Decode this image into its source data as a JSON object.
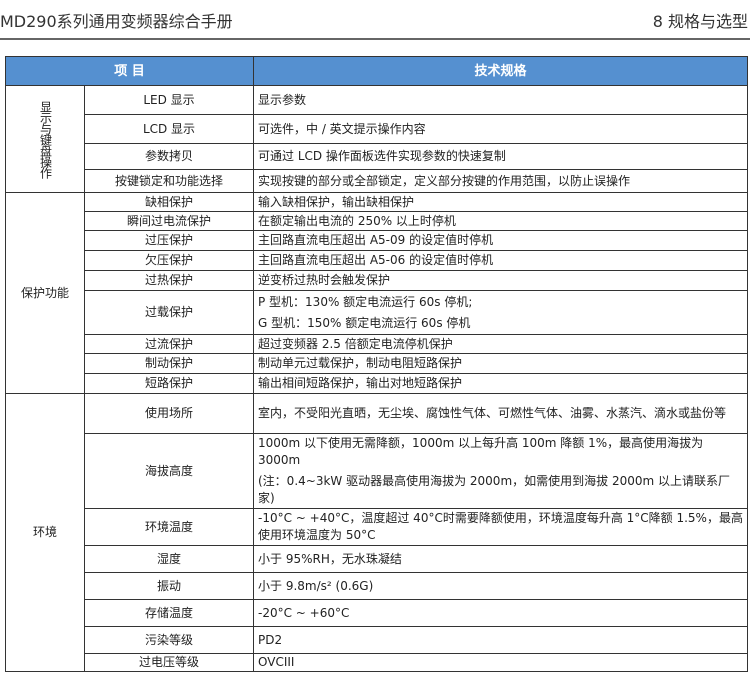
{
  "header": {
    "title": "MD290系列通用变频器综合手册",
    "chapter": "8  规格与选型"
  },
  "table": {
    "headers": [
      "项 目",
      "技术规格"
    ],
    "groups": [
      {
        "name": "显示与键盘操作",
        "rows": [
          {
            "item": "LED 显示",
            "spec": [
              "显示参数"
            ]
          },
          {
            "item": "LCD 显示",
            "spec": [
              "可选件，中 / 英文提示操作内容"
            ]
          },
          {
            "item": "参数拷贝",
            "spec": [
              "可通过 LCD 操作面板选件实现参数的快速复制"
            ]
          },
          {
            "item": "按键锁定和功能选择",
            "spec": [
              "实现按键的部分或全部锁定，定义部分按键的作用范围，以防止误操作"
            ]
          }
        ]
      },
      {
        "name": "保护功能",
        "rows": [
          {
            "item": "缺相保护",
            "spec": [
              "输入缺相保护，输出缺相保护"
            ]
          },
          {
            "item": "瞬间过电流保护",
            "spec": [
              "在额定输出电流的 250% 以上时停机"
            ]
          },
          {
            "item": "过压保护",
            "spec": [
              "主回路直流电压超出 A5-09 的设定值时停机"
            ]
          },
          {
            "item": "欠压保护",
            "spec": [
              "主回路直流电压超出 A5-06 的设定值时停机"
            ]
          },
          {
            "item": "过热保护",
            "spec": [
              "逆变桥过热时会触发保护"
            ]
          },
          {
            "item": "过载保护",
            "spec": [
              "P 型机：130% 额定电流运行 60s 停机;",
              "G 型机：150% 额定电流运行 60s 停机"
            ]
          },
          {
            "item": "过流保护",
            "spec": [
              "超过变频器 2.5 倍额定电流停机保护"
            ]
          },
          {
            "item": "制动保护",
            "spec": [
              "制动单元过载保护，制动电阻短路保护"
            ]
          },
          {
            "item": "短路保护",
            "spec": [
              "输出相间短路保护，输出对地短路保护"
            ]
          }
        ]
      },
      {
        "name": "环境",
        "rows": [
          {
            "item": "使用场所",
            "spec": [
              "室内，不受阳光直晒，无尘埃、腐蚀性气体、可燃性气体、油雾、水蒸汽、滴水或盐份等"
            ]
          },
          {
            "item": "海拔高度",
            "spec": [
              "1000m 以下使用无需降额，1000m 以上每升高 100m 降额 1%，最高使用海拔为 3000m",
              "(注：0.4~3kW 驱动器最高使用海拔为 2000m，如需使用到海拔 2000m 以上请联系厂家)"
            ]
          },
          {
            "item": "环境温度",
            "spec": [
              "-10°C ~ +40°C，温度超过 40°C时需要降额使用，环境温度每升高 1°C降额 1.5%，最高使用环境温度为 50°C"
            ]
          },
          {
            "item": "湿度",
            "spec": [
              "小于 95%RH，无水珠凝结"
            ]
          },
          {
            "item": "振动",
            "spec": [
              "小于 9.8m/s² (0.6G)"
            ]
          },
          {
            "item": "存储温度",
            "spec": [
              "-20°C ~ +60°C"
            ]
          },
          {
            "item": "污染等级",
            "spec": [
              "PD2"
            ]
          },
          {
            "item": "过电压等级",
            "spec": [
              "OVCIII"
            ]
          }
        ]
      }
    ]
  }
}
